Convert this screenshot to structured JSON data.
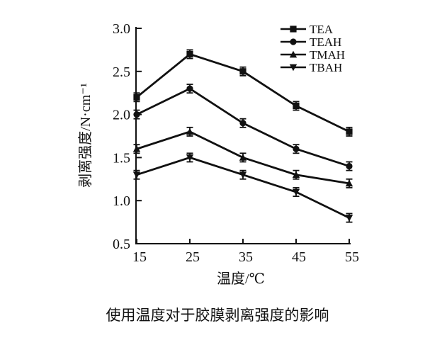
{
  "chart_data": {
    "type": "line",
    "caption": "使用温度对于胶膜剥离强度的影响",
    "xlabel": "温度/℃",
    "ylabel": "剥离强度/N·cm⁻¹",
    "x": [
      15,
      25,
      35,
      45,
      55
    ],
    "xticks": [
      15,
      25,
      35,
      45,
      55
    ],
    "yticks": [
      0.5,
      1.0,
      1.5,
      2.0,
      2.5,
      3.0
    ],
    "ylim": [
      0.5,
      3.0
    ],
    "xlim": [
      15,
      55
    ],
    "error": 0.05,
    "grid": "off",
    "legend_position": "top-right",
    "line_color": "#111111",
    "series": [
      {
        "name": "TEA",
        "marker": "square",
        "values": [
          2.2,
          2.7,
          2.5,
          2.1,
          1.8
        ]
      },
      {
        "name": "TEAH",
        "marker": "circle",
        "values": [
          2.0,
          2.3,
          1.9,
          1.6,
          1.4
        ]
      },
      {
        "name": "TMAH",
        "marker": "triangle-up",
        "values": [
          1.6,
          1.8,
          1.5,
          1.3,
          1.2
        ]
      },
      {
        "name": "TBAH",
        "marker": "triangle-down",
        "values": [
          1.3,
          1.5,
          1.3,
          1.1,
          0.8
        ]
      }
    ]
  }
}
